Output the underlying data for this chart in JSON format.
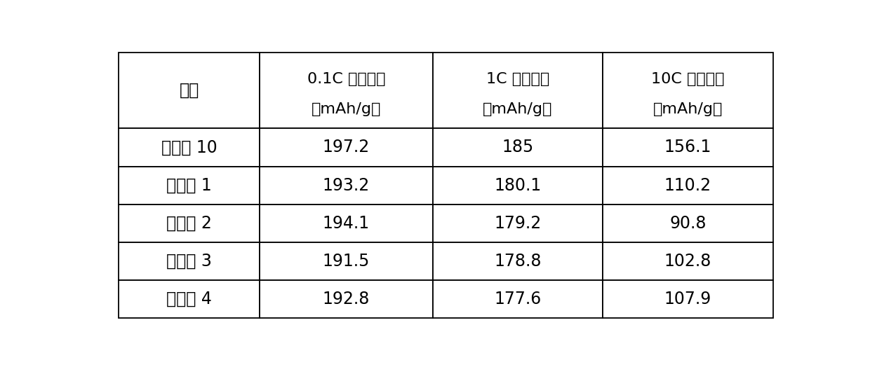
{
  "col_headers_line1": [
    "组别",
    "0.1C 放电容量",
    "1C 放电容量",
    "10C 放电容量"
  ],
  "col_headers_line2": [
    "",
    "（mAh/g）",
    "（mAh/g）",
    "（mAh/g）"
  ],
  "rows": [
    [
      "实施例 10",
      "197.2",
      "185",
      "156.1"
    ],
    [
      "对比例 1",
      "193.2",
      "180.1",
      "110.2"
    ],
    [
      "对比例 2",
      "194.1",
      "179.2",
      "90.8"
    ],
    [
      "对比例 3",
      "191.5",
      "178.8",
      "102.8"
    ],
    [
      "对比例 4",
      "192.8",
      "177.6",
      "107.9"
    ]
  ],
  "background_color": "#ffffff",
  "border_color": "#000000",
  "text_color": "#000000"
}
